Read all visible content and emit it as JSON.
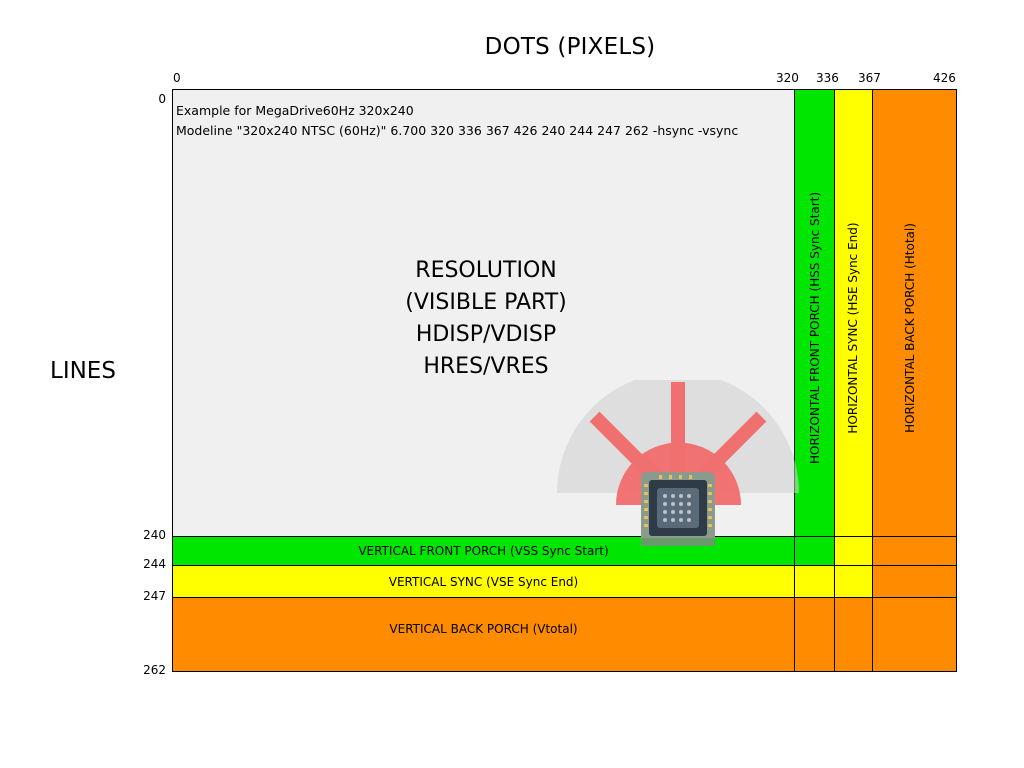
{
  "diagram": {
    "axis_title_x": "DOTS (PIXELS)",
    "axis_title_y": "LINES",
    "x_ticks": [
      "0",
      "320",
      "336",
      "367",
      "426"
    ],
    "y_ticks": [
      "0",
      "240",
      "244",
      "247",
      "262"
    ],
    "example_line1": "Example for MegaDrive60Hz 320x240",
    "example_line2": "Modeline \"320x240 NTSC (60Hz)\" 6.700 320 336 367 426 240 244 247 262  -hsync -vsync",
    "resolution_lines": [
      "RESOLUTION",
      "(VISIBLE PART)",
      "HDISP/VDISP",
      "HRES/VRES"
    ],
    "horizontal_regions": {
      "front_porch": "HORIZONTAL FRONT PORCH (HSS Sync Start)",
      "sync": "HORIZONTAL SYNC (HSE Sync End)",
      "back_porch": "HORIZONTAL BACK PORCH (Htotal)"
    },
    "vertical_regions": {
      "front_porch": "VERTICAL FRONT PORCH (VSS Sync Start)",
      "sync": "VERTICAL SYNC (VSE Sync End)",
      "back_porch": "VERTICAL BACK PORCH (Vtotal)"
    },
    "colors": {
      "visible": "#f0f0f0",
      "front_porch": "#00e600",
      "sync": "#ffff00",
      "back_porch": "#ff8c00"
    }
  }
}
